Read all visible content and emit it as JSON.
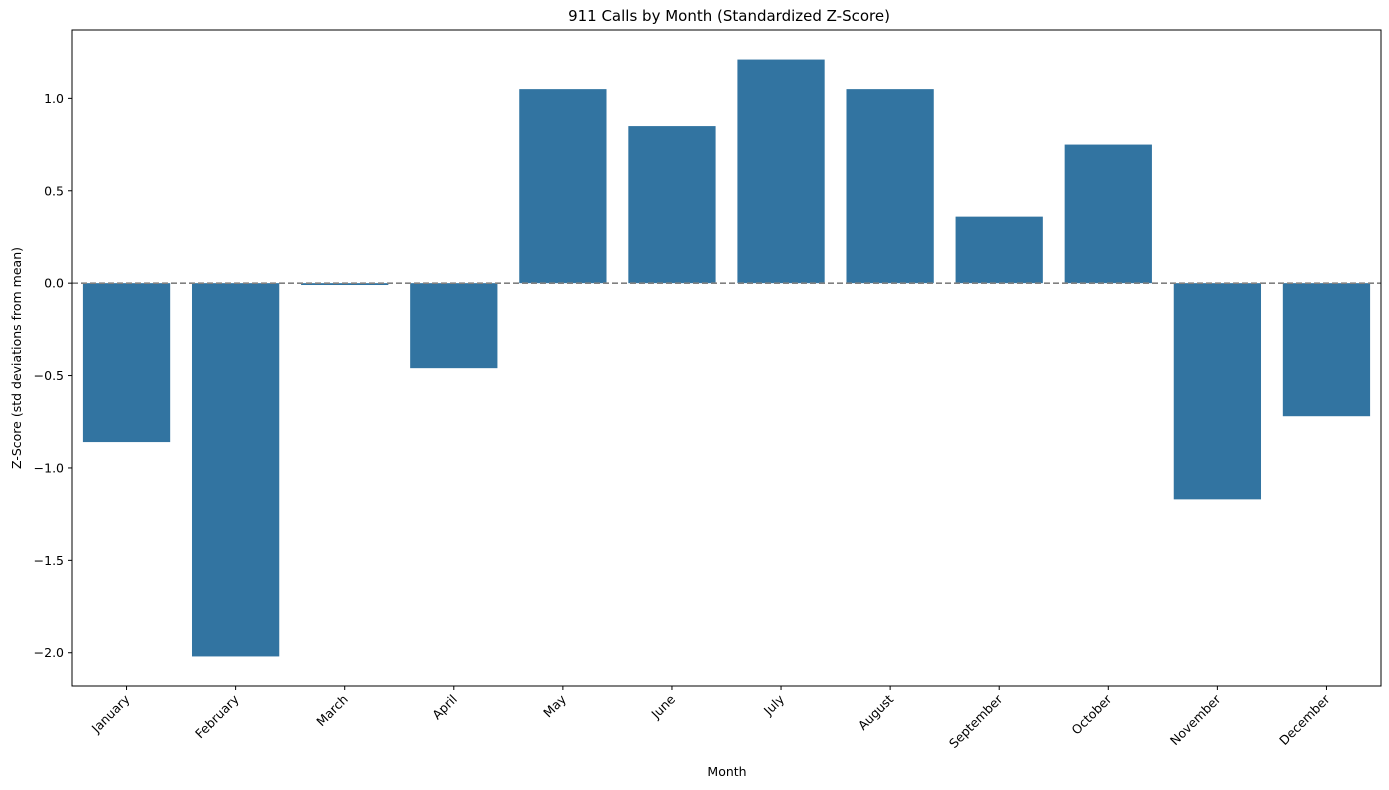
{
  "chart_data": {
    "type": "bar",
    "title": "911 Calls by Month (Standardized Z-Score)",
    "xlabel": "Month",
    "ylabel": "Z-Score (std deviations from mean)",
    "categories": [
      "January",
      "February",
      "March",
      "April",
      "May",
      "June",
      "July",
      "August",
      "September",
      "October",
      "November",
      "December"
    ],
    "values": [
      -0.86,
      -2.02,
      -0.01,
      -0.46,
      1.05,
      0.85,
      1.21,
      1.05,
      0.36,
      0.75,
      -1.17,
      -0.72
    ],
    "ylim": [
      -2.18,
      1.37
    ],
    "yticks": [
      -2.0,
      -1.5,
      -1.0,
      -0.5,
      0.0,
      0.5,
      1.0
    ],
    "ytick_labels": [
      "−2.0",
      "−1.5",
      "−1.0",
      "−0.5",
      "0.0",
      "0.5",
      "1.0"
    ],
    "reference_line": 0.0,
    "grid": false,
    "bar_color": "#3274a1",
    "reference_line_color": "#808080"
  }
}
